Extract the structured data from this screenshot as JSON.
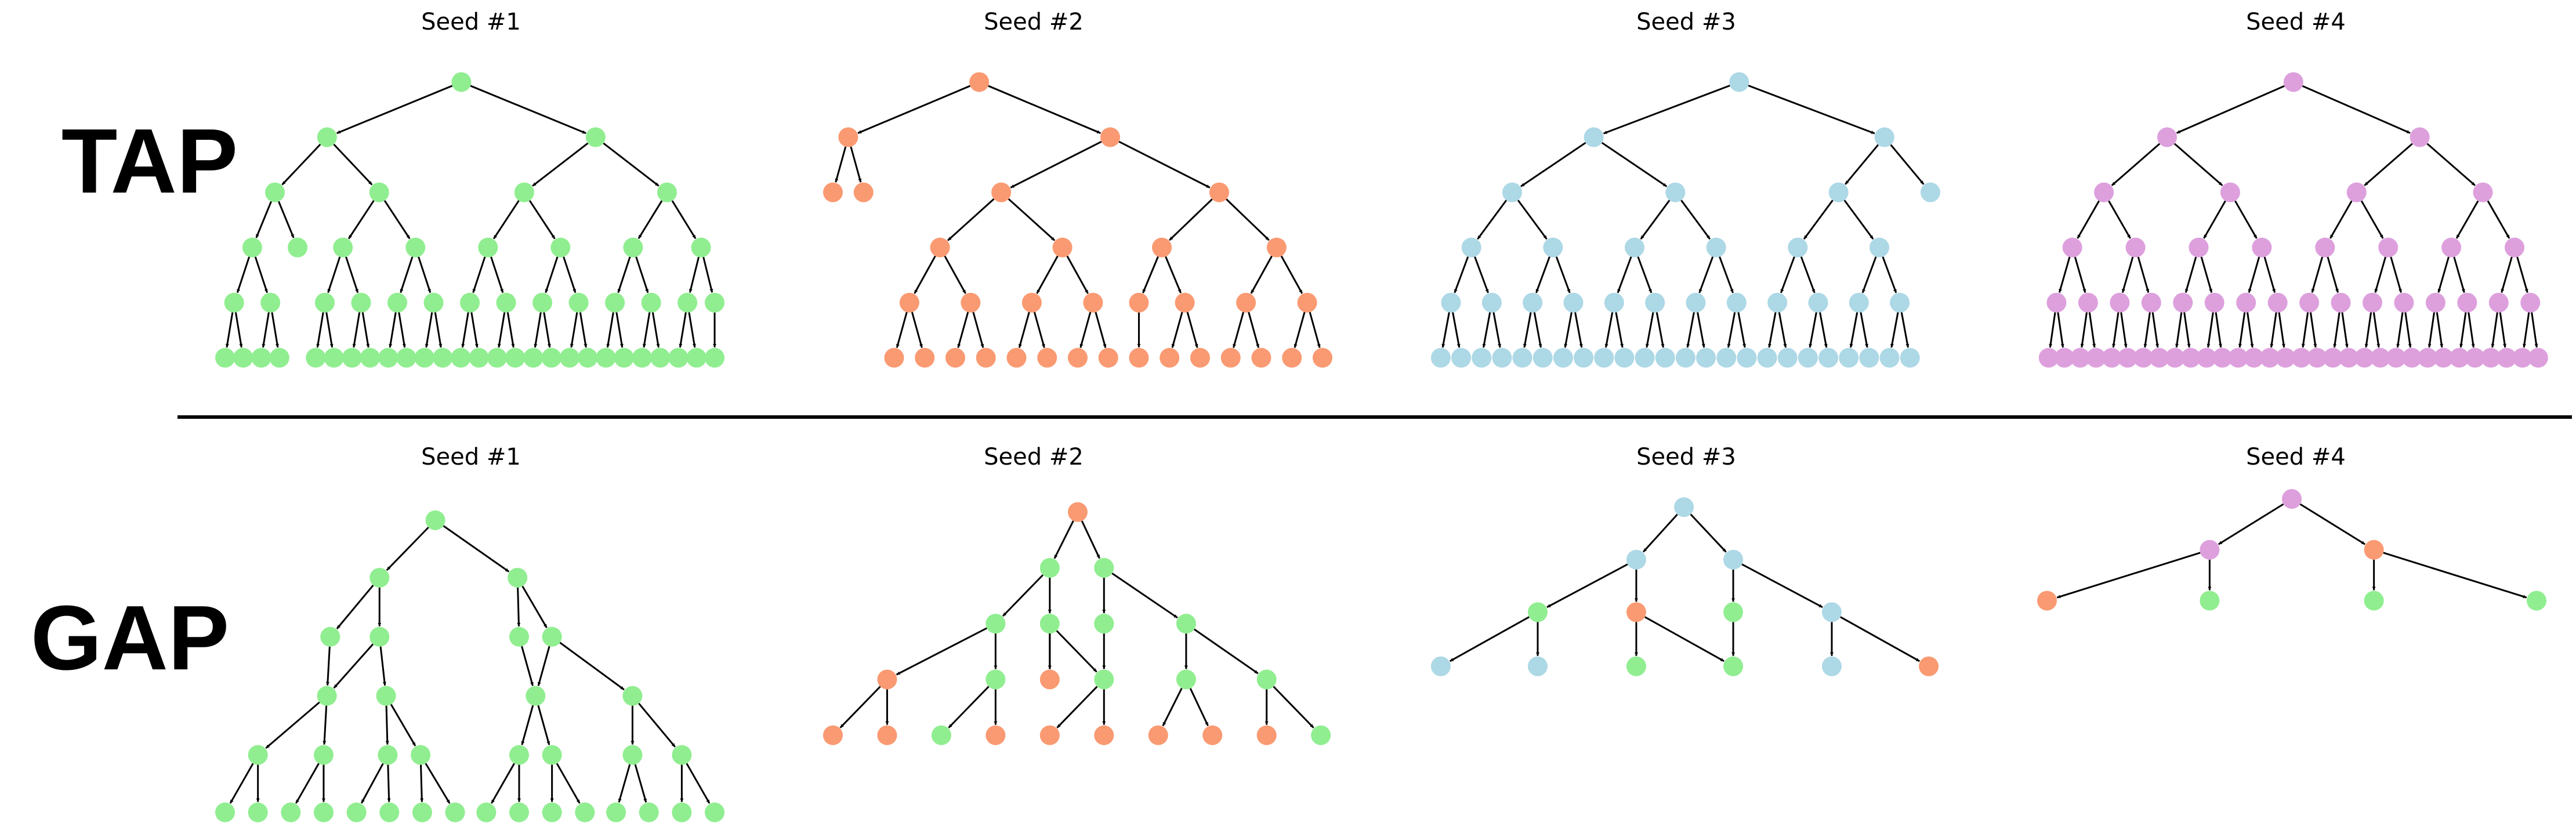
{
  "row_labels": {
    "top": "TAP",
    "bottom": "GAP"
  },
  "colors": {
    "green": "#90ee90",
    "orange": "#fa9a72",
    "blue": "#add8e6",
    "violet": "#dda0dd",
    "edge": "#000000"
  },
  "panels": [
    {
      "id": "tap-seed-1",
      "row": "top",
      "title": "Seed #1"
    },
    {
      "id": "tap-seed-2",
      "row": "top",
      "title": "Seed #2"
    },
    {
      "id": "tap-seed-3",
      "row": "top",
      "title": "Seed #3"
    },
    {
      "id": "tap-seed-4",
      "row": "top",
      "title": "Seed #4"
    },
    {
      "id": "gap-seed-1",
      "row": "bottom",
      "title": "Seed #1"
    },
    {
      "id": "gap-seed-2",
      "row": "bottom",
      "title": "Seed #2"
    },
    {
      "id": "gap-seed-3",
      "row": "bottom",
      "title": "Seed #3"
    },
    {
      "id": "gap-seed-4",
      "row": "bottom",
      "title": "Seed #4"
    }
  ]
}
